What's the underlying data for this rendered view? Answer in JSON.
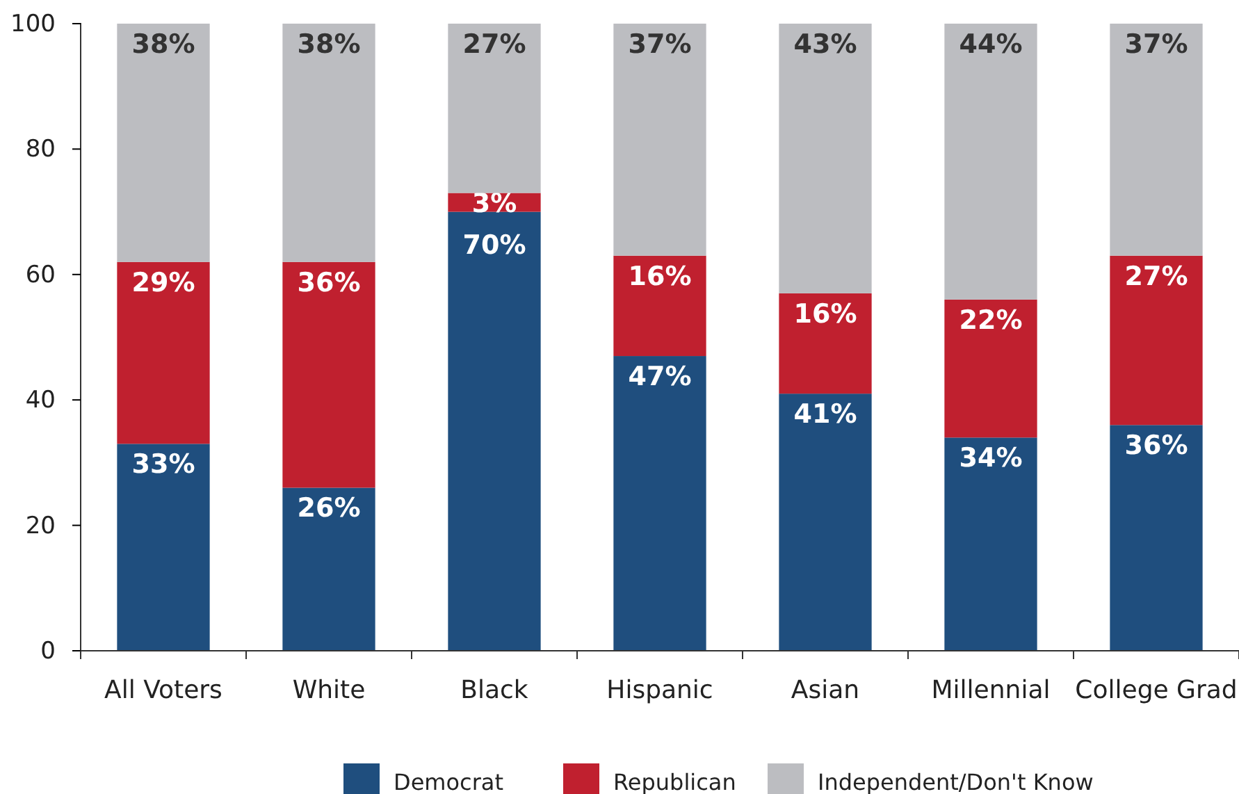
{
  "chart_data": {
    "type": "bar",
    "stacked": true,
    "categories": [
      "All Voters",
      "White",
      "Black",
      "Hispanic",
      "Asian",
      "Millennial",
      "College Grad"
    ],
    "series": [
      {
        "name": "Democrat",
        "color": "#1f4e7e",
        "values": [
          33,
          26,
          70,
          47,
          41,
          34,
          36
        ],
        "value_labels": [
          "33%",
          "26%",
          "70%",
          "47%",
          "41%",
          "34%",
          "36%"
        ]
      },
      {
        "name": "Republican",
        "color": "#c0202f",
        "values": [
          29,
          36,
          3,
          16,
          16,
          22,
          27
        ],
        "value_labels": [
          "29%",
          "36%",
          "3%",
          "16%",
          "16%",
          "22%",
          "27%"
        ]
      },
      {
        "name": "Independent/Don't Know",
        "color": "#bcbdc1",
        "values": [
          38,
          38,
          27,
          37,
          43,
          44,
          37
        ],
        "value_labels": [
          "38%",
          "38%",
          "27%",
          "37%",
          "43%",
          "44%",
          "37%"
        ]
      }
    ],
    "ylim": [
      0,
      100
    ],
    "yticks": [
      0,
      20,
      40,
      60,
      80,
      100
    ],
    "grid": false,
    "legend": "bottom"
  }
}
